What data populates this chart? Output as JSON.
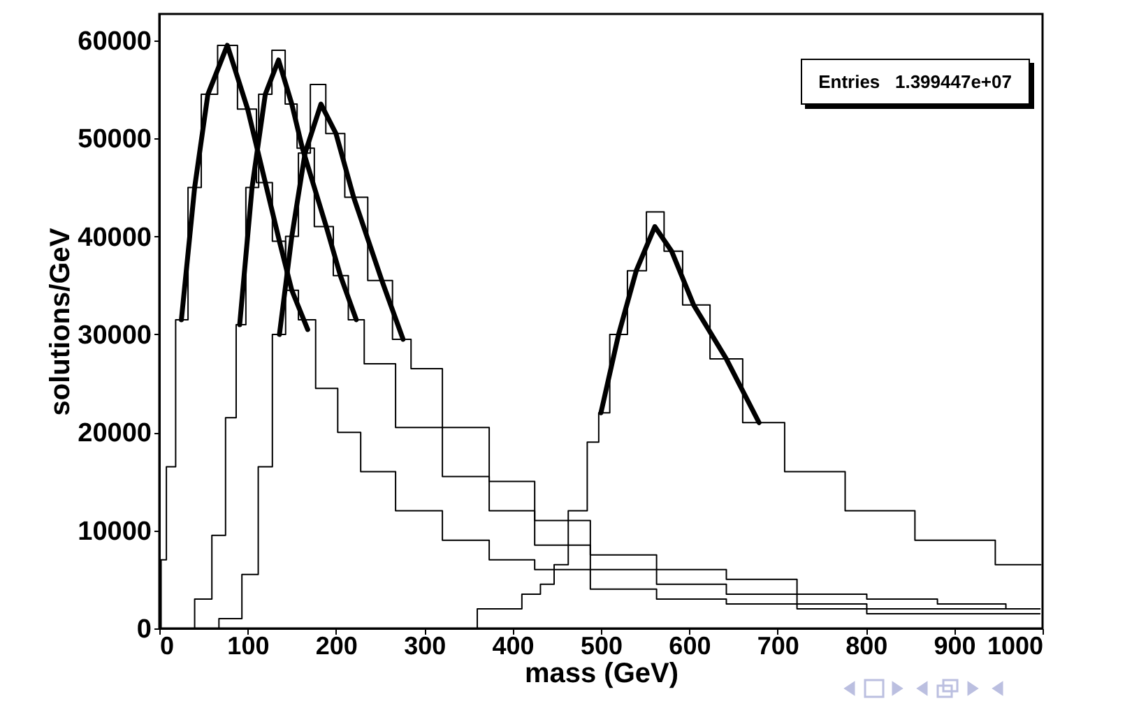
{
  "chart_data": {
    "type": "step",
    "xlabel": "mass (GeV)",
    "ylabel": "solutions/GeV",
    "xlim": [
      0,
      1000
    ],
    "ylim": [
      0,
      62700
    ],
    "xticks": [
      0,
      100,
      200,
      300,
      400,
      500,
      600,
      700,
      800,
      900,
      1000
    ],
    "yticks": [
      0,
      10000,
      20000,
      30000,
      40000,
      50000,
      60000
    ],
    "marker": "none",
    "annotations": [
      "Entries   1.399447e+07"
    ],
    "series": [
      {
        "color": "#000000",
        "x": [
          0,
          4,
          12,
          25,
          40,
          55,
          77,
          100,
          120,
          136,
          150,
          165,
          189,
          215,
          241,
          294,
          347,
          400,
          450,
          526,
          600,
          684,
          760,
          842,
          920,
          997
        ],
        "values": [
          0,
          7000,
          16500,
          31500,
          45000,
          54500,
          59500,
          53000,
          45500,
          39500,
          34500,
          31500,
          24500,
          20000,
          16000,
          12000,
          9000,
          7000,
          6000,
          4000,
          3000,
          2500,
          2000,
          1500,
          1500,
          1500
        ]
      },
      {
        "color": "#000000",
        "x": [
          28,
          52,
          67,
          83,
          91,
          105,
          120,
          135,
          150,
          162,
          189,
          205,
          223,
          241,
          294,
          347,
          400,
          450,
          526,
          600,
          684,
          760,
          842,
          920,
          997
        ],
        "values": [
          0,
          3000,
          9500,
          21500,
          31000,
          45000,
          54500,
          59000,
          53500,
          49000,
          41000,
          36000,
          31500,
          27000,
          20500,
          15500,
          12000,
          8500,
          6000,
          4500,
          3500,
          2500,
          2000,
          2000,
          2000
        ]
      },
      {
        "color": "#000000",
        "x": [
          52,
          83,
          104,
          120,
          136,
          150,
          165,
          177,
          200,
          220,
          252,
          276,
          294,
          347,
          400,
          450,
          526,
          600,
          684,
          760,
          842,
          920,
          997
        ],
        "values": [
          0,
          1000,
          5500,
          16500,
          30000,
          40000,
          48500,
          55500,
          50500,
          44000,
          35500,
          29500,
          26500,
          20500,
          15000,
          11000,
          7500,
          6000,
          5000,
          3500,
          3000,
          2500,
          2000
        ]
      },
      {
        "color": "#000000",
        "x": [
          320,
          400,
          421,
          442,
          452,
          474,
          495,
          500,
          520,
          540,
          563,
          580,
          605,
          642,
          679,
          737,
          816,
          895,
          998
        ],
        "values": [
          0,
          2000,
          3500,
          4500,
          6500,
          12000,
          19000,
          22000,
          30000,
          36500,
          42500,
          38500,
          33000,
          27500,
          21000,
          16000,
          12000,
          9000,
          6500
        ]
      },
      {
        "type": "line",
        "color": "#000000",
        "x": [
          25,
          40,
          55,
          77,
          100,
          120,
          136,
          150,
          168
        ],
        "values": [
          31500,
          45000,
          54500,
          59500,
          53000,
          45500,
          39500,
          34500,
          30500
        ]
      },
      {
        "type": "line",
        "color": "#000000",
        "x": [
          91,
          105,
          120,
          135,
          150,
          162,
          189,
          205,
          223
        ],
        "values": [
          31000,
          45000,
          54500,
          58000,
          53500,
          49000,
          41000,
          36000,
          31500
        ]
      },
      {
        "type": "line",
        "color": "#000000",
        "x": [
          136,
          150,
          165,
          183,
          200,
          220,
          252,
          276
        ],
        "values": [
          30000,
          40000,
          48500,
          53500,
          50500,
          44000,
          35500,
          29500
        ]
      },
      {
        "type": "line",
        "color": "#000000",
        "x": [
          500,
          520,
          540,
          561,
          580,
          605,
          642,
          679
        ],
        "values": [
          22000,
          30000,
          36500,
          41000,
          38500,
          33000,
          27500,
          21000
        ]
      }
    ]
  }
}
